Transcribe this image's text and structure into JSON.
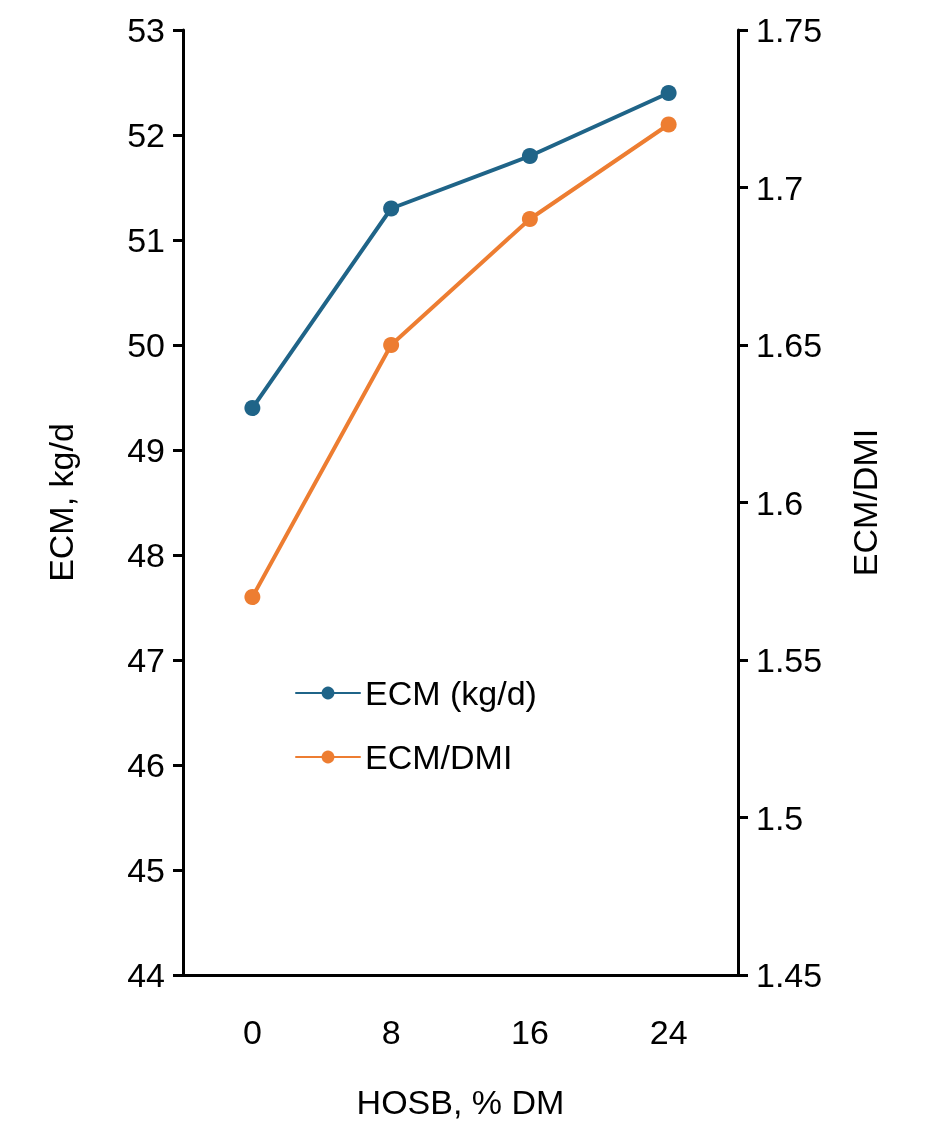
{
  "chart_data": {
    "type": "line",
    "xlabel": "HOSB, % DM",
    "ylabel": "ECM, kg/d",
    "y2label": "ECM/DMI",
    "categories": [
      "0",
      "8",
      "16",
      "24"
    ],
    "series": [
      {
        "name": "ECM (kg/d)",
        "color": "#1f6488",
        "values": [
          49.4,
          51.3,
          51.8,
          52.4
        ]
      },
      {
        "name": "ECM/DMI",
        "color": "#ed7d31",
        "values": [
          1.57,
          1.65,
          1.69,
          1.72
        ],
        "axis": "y2"
      }
    ],
    "ylim": [
      44,
      53
    ],
    "yticks": [
      44,
      45,
      46,
      47,
      48,
      49,
      50,
      51,
      52,
      53
    ],
    "y2lim": [
      1.45,
      1.75
    ],
    "y2ticks": [
      1.45,
      1.5,
      1.55,
      1.6,
      1.65,
      1.7,
      1.75
    ],
    "grid": false,
    "legend": "bottom",
    "marker": "circle",
    "line_style": "solid"
  }
}
